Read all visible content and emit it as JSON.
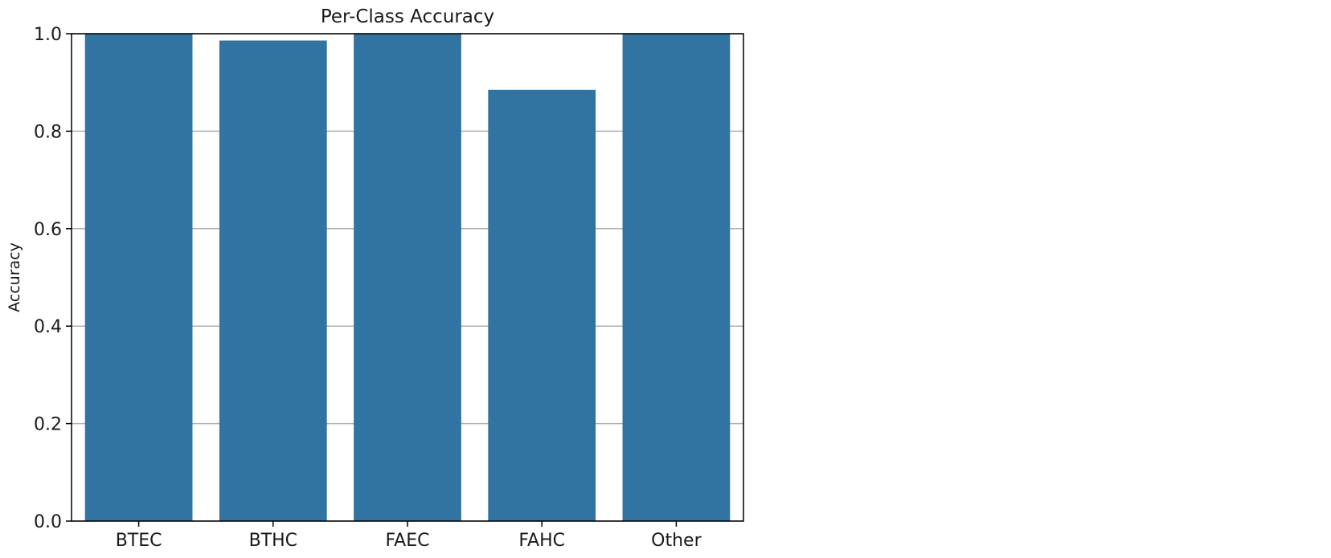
{
  "chart_data": {
    "type": "bar",
    "title": "Per-Class Accuracy",
    "xlabel": "",
    "ylabel": "Accuracy",
    "categories": [
      "BTEC",
      "BTHC",
      "FAEC",
      "FAHC",
      "Other"
    ],
    "values": [
      1.0,
      0.986,
      1.0,
      0.885,
      1.0
    ],
    "ylim": [
      0.0,
      1.0
    ],
    "yticks": [
      "0.0",
      "0.2",
      "0.4",
      "0.6",
      "0.8",
      "1.0"
    ],
    "grid": "horizontal",
    "bar_color": "#3274a1",
    "grid_color": "#b0b0b0"
  }
}
